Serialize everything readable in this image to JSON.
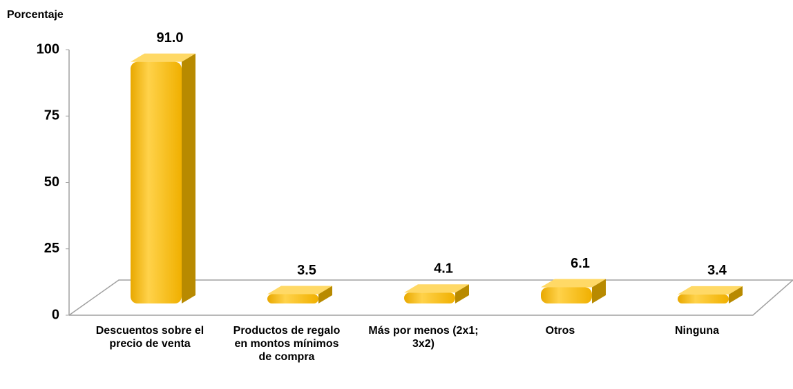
{
  "chart_data": {
    "type": "bar3d",
    "y_label": "Porcentaje",
    "categories": [
      "Descuentos sobre el precio de venta",
      "Productos de regalo en montos mínimos de compra",
      "Más por menos (2x1; 3x2)",
      "Otros",
      "Ninguna"
    ],
    "values": [
      91.0,
      3.5,
      4.1,
      6.1,
      3.4
    ],
    "value_labels": [
      "91.0",
      "3.5",
      "4.1",
      "6.1",
      "3.4"
    ],
    "color": "#ffc000",
    "ylim": [
      0,
      100
    ],
    "yticks": [
      0,
      25,
      50,
      75,
      100
    ]
  }
}
